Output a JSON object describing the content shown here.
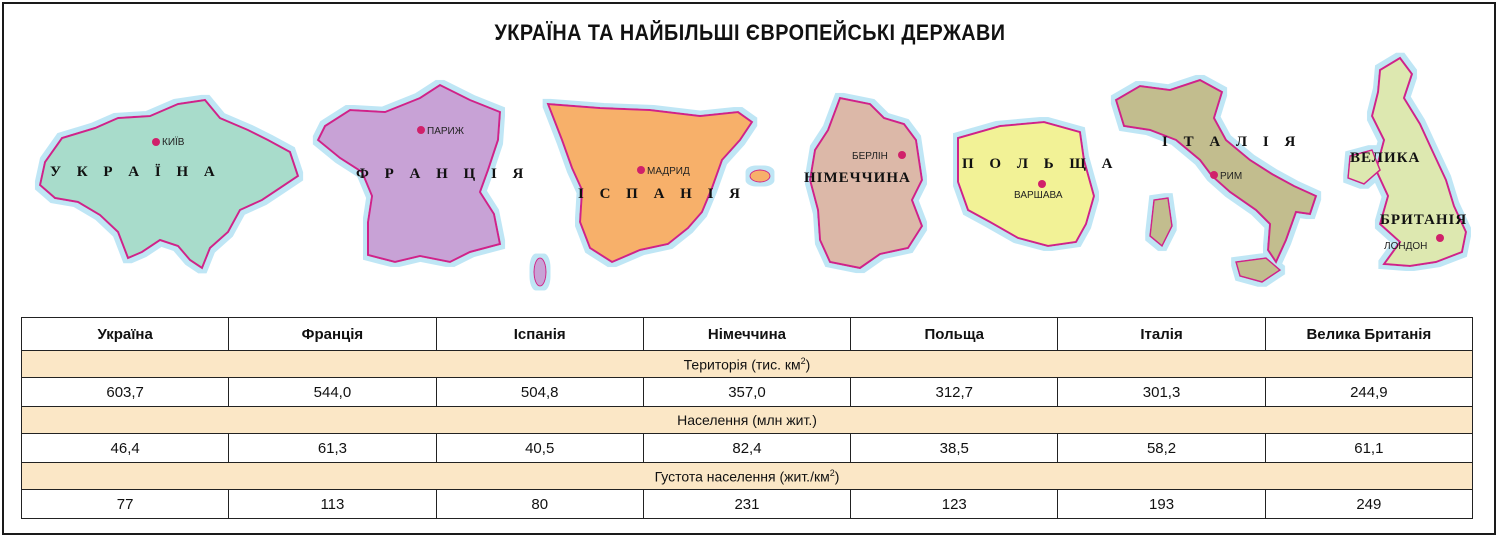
{
  "title": "УКРАЇНА ТА НАЙБІЛЬШІ ЄВРОПЕЙСЬКІ ДЕРЖАВИ",
  "maps": {
    "ukraine": {
      "name": "У К Р А Ї Н А",
      "capital": "КИЇВ",
      "color": "#a8dccb"
    },
    "france": {
      "name": "Ф Р А Н Ц І Я",
      "capital": "ПАРИЖ",
      "color": "#c8a2d6"
    },
    "spain": {
      "name": "І С П А Н І Я",
      "capital": "МАДРИД",
      "color": "#f7b06a"
    },
    "germany": {
      "name": "НІМЕЧЧИНА",
      "capital": "БЕРЛІН",
      "color": "#dcb8a8"
    },
    "poland": {
      "name": "П О Л Ь Щ А",
      "capital": "ВАРШАВА",
      "color": "#f2f296"
    },
    "italy": {
      "name": "І Т А Л І Я",
      "capital": "РИМ",
      "color": "#c2bd8e"
    },
    "uk": {
      "name1": "ВЕЛИКА",
      "name2": "БРИТАНІЯ",
      "capital": "ЛОНДОН",
      "color": "#dde8b0"
    },
    "border_color": "#d0208a",
    "sea_color": "#bfe6f5",
    "capital_color": "#d0206a"
  },
  "table": {
    "headers": [
      "Україна",
      "Франція",
      "Іспанія",
      "Німеччина",
      "Польща",
      "Італія",
      "Велика Британія"
    ],
    "sections": [
      {
        "label": "Територія (тис. км",
        "sup": "2",
        "label_end": ")",
        "values": [
          "603,7",
          "544,0",
          "504,8",
          "357,0",
          "312,7",
          "301,3",
          "244,9"
        ]
      },
      {
        "label": "Населення (млн жит.)",
        "sup": "",
        "label_end": "",
        "values": [
          "46,4",
          "61,3",
          "40,5",
          "82,4",
          "38,5",
          "58,2",
          "61,1"
        ]
      },
      {
        "label": "Густота населення (жит./км",
        "sup": "2",
        "label_end": ")",
        "values": [
          "77",
          "113",
          "80",
          "231",
          "123",
          "193",
          "249"
        ]
      }
    ],
    "section_color": "#fbe7c6"
  }
}
